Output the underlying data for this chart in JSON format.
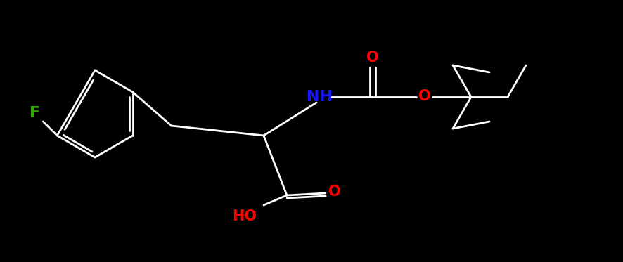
{
  "bg_color": "#000000",
  "bond_color": "#ffffff",
  "F_color": "#33aa00",
  "N_color": "#1414ff",
  "O_color": "#ff0000",
  "label_F": "F",
  "label_NH": "NH",
  "label_O_carbamate": "O",
  "label_O_ester": "O",
  "label_O_acid_dbl": "O",
  "label_HO": "HO",
  "figsize": [
    8.86,
    3.73
  ],
  "dpi": 100,
  "lw": 2.0,
  "fontsize": 15
}
